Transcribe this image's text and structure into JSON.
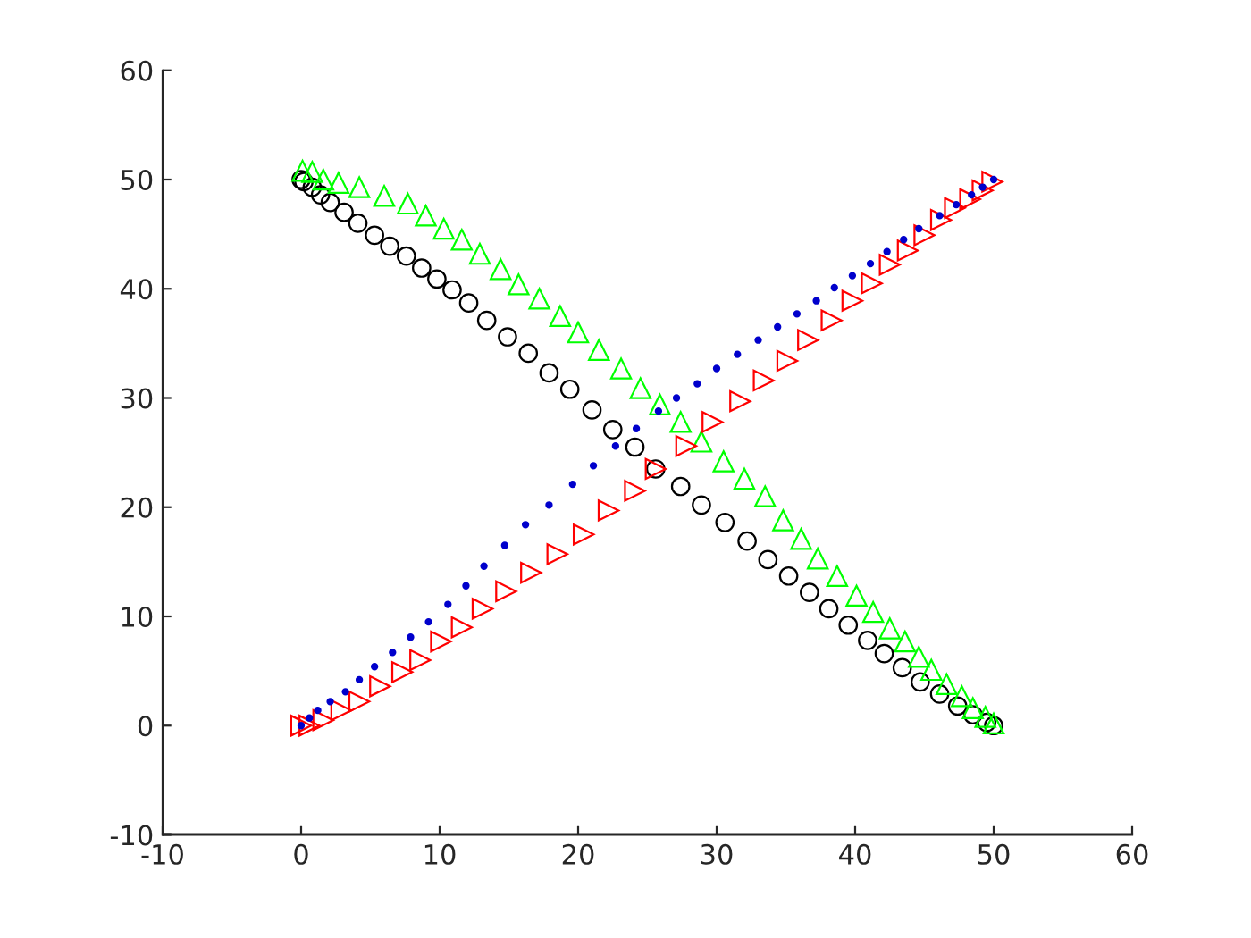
{
  "chart_data": {
    "type": "scatter",
    "xlim": [
      -10,
      60
    ],
    "ylim": [
      -10,
      60
    ],
    "xticks": [
      -10,
      0,
      10,
      20,
      30,
      40,
      50,
      60
    ],
    "yticks": [
      -10,
      0,
      10,
      20,
      30,
      40,
      50,
      60
    ],
    "grid": false,
    "series": [
      {
        "color": "#000000",
        "marker": "circle",
        "x": [
          0,
          0.2,
          0.8,
          1.4,
          2.1,
          3.1,
          4.1,
          5.3,
          6.4,
          7.6,
          8.7,
          9.8,
          10.9,
          12.1,
          13.4,
          14.9,
          16.4,
          17.9,
          19.4,
          21.0,
          22.5,
          24.1,
          25.6,
          27.4,
          28.9,
          30.6,
          32.2,
          33.7,
          35.2,
          36.7,
          38.1,
          39.5,
          40.9,
          42.1,
          43.4,
          44.7,
          46.1,
          47.4,
          48.5,
          49.5,
          50
        ],
        "values": [
          50,
          49.8,
          49.3,
          48.6,
          47.9,
          47.0,
          46.0,
          44.9,
          43.9,
          43.0,
          41.9,
          40.9,
          39.9,
          38.7,
          37.1,
          35.6,
          34.1,
          32.3,
          30.8,
          28.9,
          27.1,
          25.5,
          23.5,
          21.9,
          20.2,
          18.6,
          16.9,
          15.2,
          13.7,
          12.2,
          10.7,
          9.2,
          7.8,
          6.6,
          5.3,
          4.0,
          2.9,
          1.8,
          1.0,
          0.3,
          0
        ]
      },
      {
        "color": "#00ff00",
        "marker": "triangle",
        "x": [
          0.1,
          0.8,
          1.6,
          2.7,
          4.2,
          6.0,
          7.7,
          9.0,
          10.3,
          11.6,
          12.9,
          14.4,
          15.7,
          17.2,
          18.7,
          20.0,
          21.5,
          23.1,
          24.5,
          25.9,
          27.4,
          28.9,
          30.5,
          32.0,
          33.5,
          34.8,
          36.1,
          37.3,
          38.7,
          40.1,
          41.3,
          42.5,
          43.6,
          44.6,
          45.5,
          46.6,
          47.7,
          48.5,
          49.4,
          50.0
        ],
        "values": [
          50.8,
          50.7,
          50.0,
          49.7,
          49.3,
          48.5,
          47.8,
          46.7,
          45.5,
          44.5,
          43.2,
          41.8,
          40.4,
          39.1,
          37.5,
          36.0,
          34.4,
          32.7,
          30.9,
          29.4,
          27.8,
          26.0,
          24.2,
          22.6,
          21.0,
          18.8,
          17.1,
          15.3,
          13.7,
          11.9,
          10.4,
          8.9,
          7.7,
          6.3,
          5.1,
          3.8,
          2.7,
          1.6,
          0.8,
          0.2
        ]
      },
      {
        "color": "#ff0000",
        "marker": "triangle-right",
        "x": [
          0,
          0.6,
          1.6,
          2.9,
          4.2,
          5.7,
          7.3,
          8.6,
          10.1,
          11.6,
          13.1,
          14.8,
          16.6,
          18.5,
          20.4,
          22.2,
          24.1,
          25.6,
          27.8,
          29.7,
          31.7,
          33.4,
          35.1,
          36.6,
          38.3,
          39.8,
          41.2,
          42.5,
          43.8,
          45.0,
          46.2,
          47.2,
          48.3,
          49.2,
          49.9
        ],
        "values": [
          0,
          0.0,
          0.5,
          1.4,
          2.2,
          3.6,
          4.9,
          6.0,
          7.7,
          9.0,
          10.7,
          12.3,
          14.0,
          15.7,
          17.5,
          19.7,
          21.5,
          23.5,
          25.6,
          27.8,
          29.7,
          31.6,
          33.4,
          35.3,
          37.1,
          38.9,
          40.5,
          42.2,
          43.5,
          44.9,
          46.3,
          47.4,
          48.2,
          49.0,
          49.8
        ]
      },
      {
        "color": "#0000cc",
        "marker": "point",
        "x": [
          0,
          0.6,
          1.2,
          2.1,
          3.2,
          4.2,
          5.3,
          6.6,
          7.9,
          9.2,
          10.6,
          11.9,
          13.2,
          14.7,
          16.2,
          17.9,
          19.6,
          21.1,
          22.7,
          24.2,
          25.8,
          27.1,
          28.6,
          30.0,
          31.5,
          33.0,
          34.4,
          35.8,
          37.2,
          38.5,
          39.8,
          41.1,
          42.3,
          43.5,
          44.6,
          46.1,
          47.3,
          48.4,
          49.2,
          50
        ],
        "values": [
          0,
          0.7,
          1.4,
          2.2,
          3.1,
          4.2,
          5.4,
          6.7,
          8.1,
          9.5,
          11.1,
          12.8,
          14.6,
          16.5,
          18.4,
          20.2,
          22.1,
          23.8,
          25.6,
          27.2,
          28.8,
          30.0,
          31.3,
          32.7,
          34.0,
          35.3,
          36.5,
          37.7,
          38.9,
          40.1,
          41.2,
          42.3,
          43.4,
          44.5,
          45.5,
          46.7,
          47.7,
          48.6,
          49.3,
          50
        ]
      }
    ]
  }
}
